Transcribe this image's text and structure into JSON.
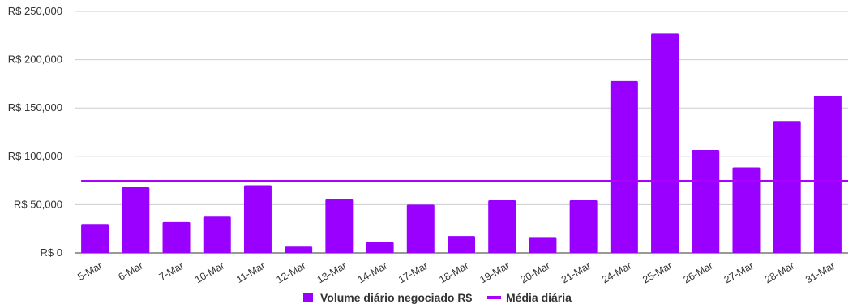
{
  "chart_data": {
    "type": "bar",
    "categories": [
      "5-Mar",
      "6-Mar",
      "7-Mar",
      "10-Mar",
      "11-Mar",
      "12-Mar",
      "13-Mar",
      "14-Mar",
      "17-Mar",
      "18-Mar",
      "19-Mar",
      "20-Mar",
      "21-Mar",
      "24-Mar",
      "25-Mar",
      "26-Mar",
      "27-Mar",
      "28-Mar",
      "31-Mar"
    ],
    "series": [
      {
        "name": "Volume diário negociado R$",
        "type": "bar",
        "color": "#9900ff",
        "values": [
          30000,
          68000,
          32000,
          37500,
          70000,
          6500,
          55500,
          11000,
          50000,
          17500,
          54500,
          16500,
          54500,
          178000,
          227000,
          106500,
          88500,
          136500,
          162500
        ]
      },
      {
        "name": "Média diária",
        "type": "line",
        "color": "#aa00ff",
        "values": [
          74500,
          74500,
          74500,
          74500,
          74500,
          74500,
          74500,
          74500,
          74500,
          74500,
          74500,
          74500,
          74500,
          74500,
          74500,
          74500,
          74500,
          74500,
          74500
        ]
      }
    ],
    "ylim": [
      0,
      250000
    ],
    "y_ticks": [
      0,
      50000,
      100000,
      150000,
      200000,
      250000
    ],
    "y_tick_labels": [
      "R$ 0",
      "R$ 50,000",
      "R$ 100,000",
      "R$ 150,000",
      "R$ 200,000",
      "R$ 250,000"
    ],
    "grid": true,
    "legend_position": "bottom"
  }
}
